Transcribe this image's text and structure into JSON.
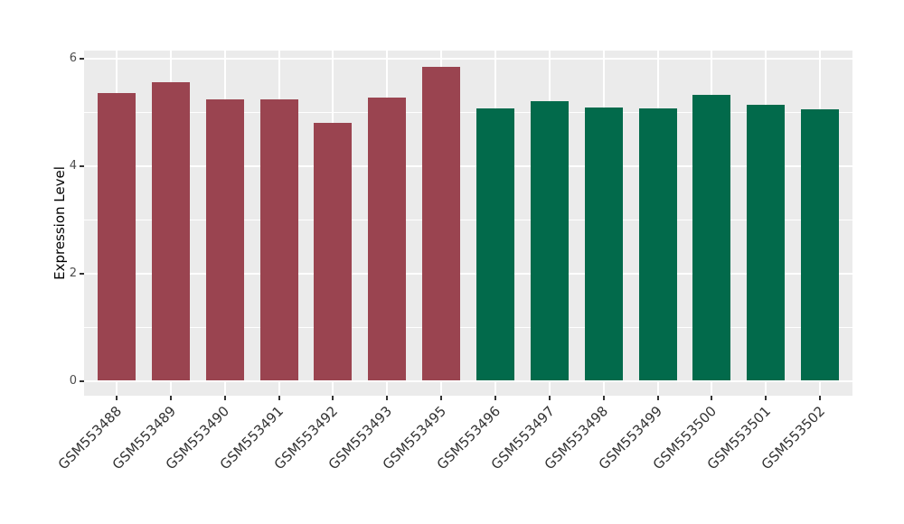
{
  "figure": {
    "background": "#FFFFFF",
    "panel_background": "#EBEBEB",
    "gridline_color": "#FFFFFF",
    "tick_color": "#333333"
  },
  "chart_data": {
    "type": "bar",
    "title": "",
    "xlabel": "",
    "ylabel": "Expression Level",
    "categories": [
      "GSM553488",
      "GSM553489",
      "GSM553490",
      "GSM553491",
      "GSM553492",
      "GSM553493",
      "GSM553495",
      "GSM553496",
      "GSM553497",
      "GSM553498",
      "GSM553499",
      "GSM553500",
      "GSM553501",
      "GSM553502"
    ],
    "values": [
      5.35,
      5.55,
      5.24,
      5.24,
      4.8,
      5.27,
      5.84,
      5.06,
      5.21,
      5.08,
      5.07,
      5.32,
      5.13,
      5.05
    ],
    "groups": [
      "group1",
      "group1",
      "group1",
      "group1",
      "group1",
      "group1",
      "group1",
      "group2",
      "group2",
      "group2",
      "group2",
      "group2",
      "group2",
      "group2"
    ],
    "group_colors": {
      "group1": "#9A4450",
      "group2": "#026A4B"
    },
    "ylim": [
      0,
      6.15
    ],
    "yticks": [
      0,
      2,
      4,
      6
    ],
    "yticks_minor": [
      1,
      3,
      5
    ],
    "grid": true,
    "legend": "none"
  }
}
